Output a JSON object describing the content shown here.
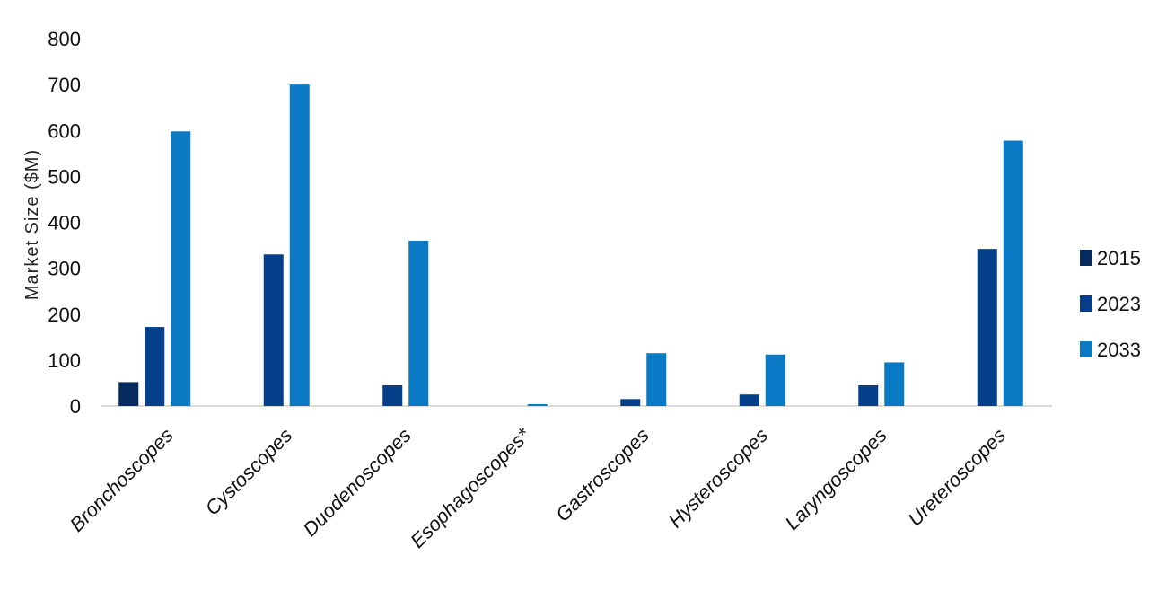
{
  "chart_data": {
    "type": "bar",
    "title": "",
    "ylabel": "Market Size ($M)",
    "xlabel": "",
    "ylim": [
      0,
      800
    ],
    "yticks": [
      0,
      100,
      200,
      300,
      400,
      500,
      600,
      700,
      800
    ],
    "categories": [
      "Bronchoscopes",
      "Cystoscopes",
      "Duodenoscopes",
      "Esophagoscopes*",
      "Gastroscopes",
      "Hysteroscopes",
      "Laryngoscopes",
      "Ureteroscopes"
    ],
    "series": [
      {
        "name": "2015",
        "color": "#062a5e",
        "values": [
          52,
          0,
          0,
          0,
          0,
          0,
          0,
          0
        ]
      },
      {
        "name": "2023",
        "color": "#053f8a",
        "values": [
          172,
          330,
          45,
          0,
          15,
          25,
          45,
          342
        ]
      },
      {
        "name": "2033",
        "color": "#0b7ac4",
        "values": [
          598,
          700,
          360,
          4,
          115,
          112,
          95,
          578
        ]
      }
    ],
    "legend_position": "right",
    "grid": false
  }
}
